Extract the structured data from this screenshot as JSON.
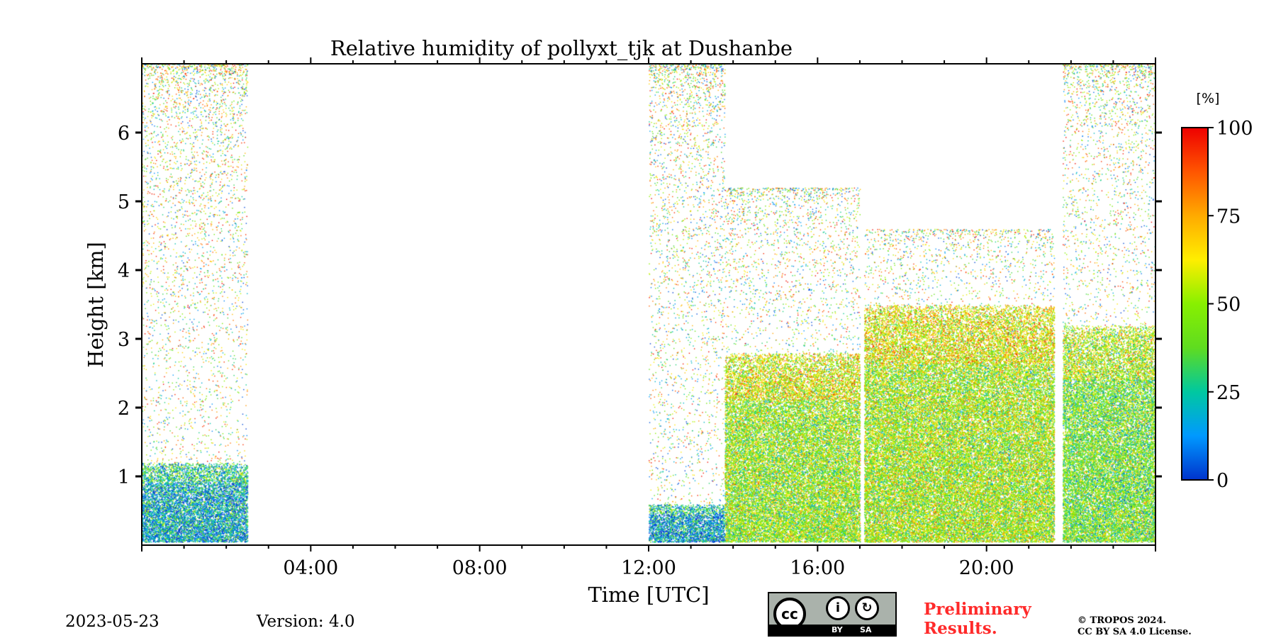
{
  "chart_data": {
    "type": "heatmap",
    "title": "Relative humidity of pollyxt_tjk at Dushanbe",
    "xlabel": "Time [UTC]",
    "ylabel": "Height [km]",
    "xlim_hours": [
      0,
      24
    ],
    "ylim_km": [
      0,
      7
    ],
    "x_ticks": [
      {
        "hour": 4,
        "label": "04:00"
      },
      {
        "hour": 8,
        "label": "08:00"
      },
      {
        "hour": 12,
        "label": "12:00"
      },
      {
        "hour": 16,
        "label": "16:00"
      },
      {
        "hour": 20,
        "label": "20:00"
      }
    ],
    "y_ticks": [
      {
        "km": 1,
        "label": "1"
      },
      {
        "km": 2,
        "label": "2"
      },
      {
        "km": 3,
        "label": "3"
      },
      {
        "km": 4,
        "label": "4"
      },
      {
        "km": 5,
        "label": "5"
      },
      {
        "km": 6,
        "label": "6"
      }
    ],
    "colorbar": {
      "unit": "[%]",
      "range": [
        0,
        100
      ],
      "ticks": [
        {
          "value": 0,
          "label": "0"
        },
        {
          "value": 25,
          "label": "25"
        },
        {
          "value": 50,
          "label": "50"
        },
        {
          "value": 75,
          "label": "75"
        },
        {
          "value": 100,
          "label": "100"
        }
      ],
      "stops": [
        "#0033cc",
        "#0099ff",
        "#00c8a0",
        "#5fdc20",
        "#88f000",
        "#ffee00",
        "#ffaa00",
        "#ff5500",
        "#ee0000"
      ]
    },
    "segments": [
      {
        "start_h": 0.0,
        "end_h": 2.5,
        "dense_top_km": 1.2,
        "sparse_top_km": 7.0,
        "mean_rh": 18
      },
      {
        "start_h": 12.0,
        "end_h": 13.8,
        "dense_top_km": 0.6,
        "sparse_top_km": 7.0,
        "mean_rh": 15
      },
      {
        "start_h": 13.8,
        "end_h": 17.0,
        "dense_top_km": 2.8,
        "sparse_top_km": 5.2,
        "mean_rh": 48
      },
      {
        "start_h": 17.1,
        "end_h": 21.6,
        "dense_top_km": 3.5,
        "sparse_top_km": 4.6,
        "mean_rh": 50
      },
      {
        "start_h": 21.8,
        "end_h": 24.0,
        "dense_top_km": 3.2,
        "sparse_top_km": 7.0,
        "mean_rh": 42
      }
    ],
    "gaps": [
      {
        "start_h": 2.5,
        "end_h": 12.0
      },
      {
        "start_h": 17.0,
        "end_h": 17.1
      },
      {
        "start_h": 21.6,
        "end_h": 21.8
      }
    ]
  },
  "footer": {
    "date": "2023-05-23",
    "version": "Version: 4.0",
    "preliminary_line1": "Preliminary",
    "preliminary_line2": "Results.",
    "copyright_line1": "© TROPOS 2024.",
    "copyright_line2": "CC BY SA 4.0 License.",
    "preliminary_color": "#ff2a2a"
  },
  "license_badge": {
    "cc": "cc",
    "by": "BY",
    "sa": "SA"
  }
}
